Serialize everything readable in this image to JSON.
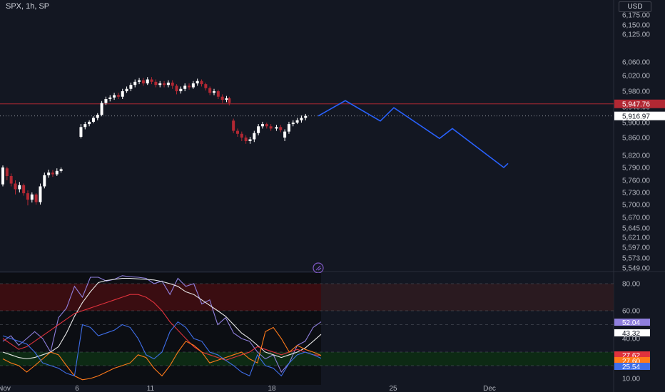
{
  "header": {
    "symbol": "SPX, 1h, SP",
    "currency": "USD"
  },
  "colors": {
    "background": "#131722",
    "candle_up": "#ffffff",
    "candle_down": "#b22833",
    "projection": "#2962ff",
    "axis_text": "#b2b5be",
    "grid": "#2a2e39",
    "price_line_red": "#b22833",
    "osc_overbought": "#3a0d11",
    "osc_oversold": "#0d2a14",
    "stoch_k": "#8f7fdd",
    "stoch_d": "#e8e8e8",
    "rsi": "#e0323c",
    "line_orange": "#ff7a1a",
    "line_blue": "#3f6ee8"
  },
  "chart_data": [
    {
      "type": "candlestick",
      "title": "SPX, 1h, SP",
      "ylabel": "USD",
      "y_ticks": [
        "6,175.00",
        "6,150.00",
        "6,125.00",
        "6,060.00",
        "6,020.00",
        "5,980.00",
        "5,940.00",
        "5,900.00",
        "5,860.00",
        "5,820.00",
        "5,790.00",
        "5,760.00",
        "5,730.00",
        "5,700.00",
        "5,670.00",
        "5,645.00",
        "5,621.00",
        "5,597.00",
        "5,573.00",
        "5,549.00"
      ],
      "x_ticks": [
        "Nov",
        "6",
        "11",
        "18",
        "25",
        "Dec"
      ],
      "last_price": "5,916.97",
      "marked_price": "5,947.76",
      "candles": [
        {
          "o": 5750,
          "c": 5790,
          "h": 5795,
          "l": 5745
        },
        {
          "o": 5788,
          "c": 5770,
          "h": 5792,
          "l": 5760
        },
        {
          "o": 5770,
          "c": 5752,
          "h": 5776,
          "l": 5745
        },
        {
          "o": 5752,
          "c": 5738,
          "h": 5760,
          "l": 5725
        },
        {
          "o": 5738,
          "c": 5748,
          "h": 5756,
          "l": 5730
        },
        {
          "o": 5748,
          "c": 5728,
          "h": 5752,
          "l": 5722
        },
        {
          "o": 5728,
          "c": 5712,
          "h": 5735,
          "l": 5698
        },
        {
          "o": 5712,
          "c": 5725,
          "h": 5730,
          "l": 5705
        },
        {
          "o": 5725,
          "c": 5706,
          "h": 5728,
          "l": 5700
        },
        {
          "o": 5706,
          "c": 5745,
          "h": 5752,
          "l": 5700
        },
        {
          "o": 5745,
          "c": 5772,
          "h": 5778,
          "l": 5740
        },
        {
          "o": 5772,
          "c": 5778,
          "h": 5785,
          "l": 5766
        },
        {
          "o": 5778,
          "c": 5774,
          "h": 5784,
          "l": 5768
        },
        {
          "o": 5774,
          "c": 5782,
          "h": 5788,
          "l": 5770
        },
        {
          "o": 5782,
          "c": 5786,
          "h": 5790,
          "l": 5778
        },
        {
          "o": 5862,
          "c": 5888,
          "h": 5896,
          "l": 5858
        },
        {
          "o": 5888,
          "c": 5896,
          "h": 5902,
          "l": 5882
        },
        {
          "o": 5896,
          "c": 5902,
          "h": 5906,
          "l": 5890
        },
        {
          "o": 5902,
          "c": 5912,
          "h": 5916,
          "l": 5898
        },
        {
          "o": 5912,
          "c": 5920,
          "h": 5924,
          "l": 5906
        },
        {
          "o": 5920,
          "c": 5950,
          "h": 5955,
          "l": 5916
        },
        {
          "o": 5950,
          "c": 5960,
          "h": 5966,
          "l": 5945
        },
        {
          "o": 5960,
          "c": 5964,
          "h": 5970,
          "l": 5954
        },
        {
          "o": 5964,
          "c": 5970,
          "h": 5976,
          "l": 5958
        },
        {
          "o": 5970,
          "c": 5966,
          "h": 5976,
          "l": 5960
        },
        {
          "o": 5966,
          "c": 5980,
          "h": 5986,
          "l": 5960
        },
        {
          "o": 5980,
          "c": 5986,
          "h": 5992,
          "l": 5976
        },
        {
          "o": 5986,
          "c": 5996,
          "h": 6002,
          "l": 5980
        },
        {
          "o": 5996,
          "c": 6004,
          "h": 6010,
          "l": 5990
        },
        {
          "o": 6004,
          "c": 6008,
          "h": 6014,
          "l": 5998
        },
        {
          "o": 6008,
          "c": 6000,
          "h": 6014,
          "l": 5994
        },
        {
          "o": 6000,
          "c": 6010,
          "h": 6016,
          "l": 5996
        },
        {
          "o": 6010,
          "c": 6004,
          "h": 6016,
          "l": 5998
        },
        {
          "o": 6004,
          "c": 5996,
          "h": 6010,
          "l": 5990
        },
        {
          "o": 5996,
          "c": 6000,
          "h": 6006,
          "l": 5990
        },
        {
          "o": 6000,
          "c": 5996,
          "h": 6006,
          "l": 5990
        },
        {
          "o": 5996,
          "c": 6002,
          "h": 6008,
          "l": 5990
        },
        {
          "o": 6002,
          "c": 5994,
          "h": 6008,
          "l": 5986
        },
        {
          "o": 5994,
          "c": 5980,
          "h": 5998,
          "l": 5972
        },
        {
          "o": 5980,
          "c": 5986,
          "h": 5992,
          "l": 5974
        },
        {
          "o": 5986,
          "c": 5994,
          "h": 6000,
          "l": 5980
        },
        {
          "o": 5994,
          "c": 5990,
          "h": 6000,
          "l": 5984
        },
        {
          "o": 5990,
          "c": 6000,
          "h": 6006,
          "l": 5986
        },
        {
          "o": 6000,
          "c": 6006,
          "h": 6012,
          "l": 5994
        },
        {
          "o": 6006,
          "c": 5998,
          "h": 6010,
          "l": 5992
        },
        {
          "o": 5998,
          "c": 5988,
          "h": 6002,
          "l": 5982
        },
        {
          "o": 5988,
          "c": 5976,
          "h": 5992,
          "l": 5970
        },
        {
          "o": 5976,
          "c": 5980,
          "h": 5986,
          "l": 5970
        },
        {
          "o": 5980,
          "c": 5966,
          "h": 5984,
          "l": 5960
        },
        {
          "o": 5966,
          "c": 5958,
          "h": 5972,
          "l": 5950
        },
        {
          "o": 5958,
          "c": 5962,
          "h": 5968,
          "l": 5952
        },
        {
          "o": 5962,
          "c": 5950,
          "h": 5966,
          "l": 5944
        },
        {
          "o": 5905,
          "c": 5878,
          "h": 5910,
          "l": 5872
        },
        {
          "o": 5878,
          "c": 5870,
          "h": 5884,
          "l": 5862
        },
        {
          "o": 5870,
          "c": 5860,
          "h": 5876,
          "l": 5852
        },
        {
          "o": 5860,
          "c": 5852,
          "h": 5866,
          "l": 5846
        },
        {
          "o": 5852,
          "c": 5856,
          "h": 5862,
          "l": 5846
        },
        {
          "o": 5856,
          "c": 5872,
          "h": 5878,
          "l": 5850
        },
        {
          "o": 5872,
          "c": 5890,
          "h": 5896,
          "l": 5866
        },
        {
          "o": 5890,
          "c": 5896,
          "h": 5902,
          "l": 5884
        },
        {
          "o": 5896,
          "c": 5890,
          "h": 5900,
          "l": 5884
        },
        {
          "o": 5890,
          "c": 5884,
          "h": 5896,
          "l": 5878
        },
        {
          "o": 5884,
          "c": 5888,
          "h": 5894,
          "l": 5878
        },
        {
          "o": 5888,
          "c": 5880,
          "h": 5894,
          "l": 5874
        },
        {
          "o": 5860,
          "c": 5876,
          "h": 5882,
          "l": 5852
        },
        {
          "o": 5876,
          "c": 5896,
          "h": 5902,
          "l": 5870
        },
        {
          "o": 5896,
          "c": 5900,
          "h": 5906,
          "l": 5890
        },
        {
          "o": 5900,
          "c": 5906,
          "h": 5912,
          "l": 5896
        },
        {
          "o": 5906,
          "c": 5912,
          "h": 5918,
          "l": 5900
        },
        {
          "o": 5912,
          "c": 5917,
          "h": 5922,
          "l": 5906
        }
      ],
      "projection": [
        5917,
        5956,
        5904,
        5938,
        5858,
        5884,
        5790,
        5800
      ]
    },
    {
      "type": "line",
      "title": "",
      "y_ticks": [
        "80.00",
        "60.00",
        "40.00",
        "10.00"
      ],
      "ylim": [
        0,
        100
      ],
      "bands": [
        {
          "from": 60,
          "to": 80,
          "label": "overbought"
        },
        {
          "from": 20,
          "to": 30,
          "label": "oversold"
        }
      ],
      "labels": {
        "stoch_d": "43.32",
        "stoch_k": "52.04",
        "rsi": "27.62",
        "orange": "27.60",
        "blue": "25.54"
      },
      "series": [
        {
          "name": "",
          "key": "stoch_k",
          "values": [
            38,
            42,
            35,
            40,
            45,
            40,
            30,
            55,
            62,
            78,
            70,
            92,
            92,
            85,
            88,
            95,
            93,
            92,
            90,
            80,
            85,
            72,
            90,
            78,
            80,
            65,
            68,
            50,
            55,
            44,
            40,
            38,
            30,
            25,
            28,
            15,
            22,
            35,
            38,
            48,
            52
          ]
        },
        {
          "name": "",
          "key": "stoch_d",
          "values": [
            30,
            28,
            26,
            25,
            26,
            28,
            30,
            34,
            44,
            56,
            66,
            74,
            82,
            86,
            88,
            90,
            90,
            89,
            88,
            87,
            84,
            80,
            78,
            74,
            72,
            68,
            64,
            60,
            56,
            50,
            44,
            40,
            35,
            30,
            28,
            26,
            28,
            30,
            33,
            38,
            43
          ]
        },
        {
          "name": "",
          "key": "rsi",
          "values": [
            40,
            36,
            32,
            34,
            38,
            42,
            46,
            50,
            54,
            58,
            60,
            62,
            64,
            66,
            68,
            70,
            72,
            72,
            70,
            66,
            60,
            52,
            46,
            40,
            34,
            30,
            28,
            26,
            24,
            26,
            28,
            30,
            34,
            32,
            30,
            28,
            30,
            32,
            30,
            28,
            27.6
          ]
        },
        {
          "name": "",
          "key": "orange",
          "values": [
            25,
            22,
            20,
            15,
            20,
            25,
            30,
            28,
            20,
            12,
            8,
            10,
            12,
            15,
            18,
            20,
            22,
            28,
            26,
            18,
            12,
            20,
            30,
            38,
            35,
            30,
            22,
            24,
            26,
            28,
            30,
            25,
            22,
            45,
            48,
            40,
            30,
            35,
            32,
            30,
            27.6
          ]
        },
        {
          "name": "",
          "key": "blue",
          "values": [
            42,
            40,
            38,
            36,
            30,
            22,
            20,
            18,
            14,
            12,
            50,
            48,
            42,
            44,
            46,
            50,
            48,
            40,
            28,
            25,
            30,
            45,
            52,
            48,
            40,
            38,
            30,
            28,
            24,
            20,
            15,
            12,
            28,
            20,
            18,
            12,
            22,
            28,
            30,
            28,
            25.5
          ]
        }
      ]
    }
  ]
}
